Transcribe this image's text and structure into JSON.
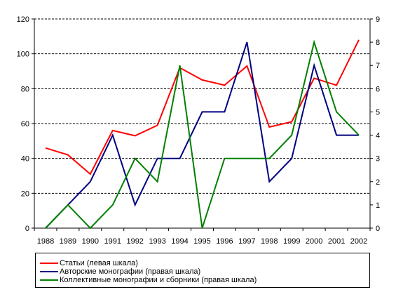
{
  "chart_data": {
    "type": "line",
    "x": [
      "1988",
      "1989",
      "1990",
      "1991",
      "1992",
      "1993",
      "1994",
      "1995",
      "1996",
      "1997",
      "1998",
      "1999",
      "2000",
      "2001",
      "2002"
    ],
    "left_axis": {
      "ylim": [
        0,
        120
      ],
      "ticks": [
        "0",
        "20",
        "40",
        "60",
        "80",
        "100",
        "120"
      ]
    },
    "right_axis": {
      "ylim": [
        0,
        9
      ],
      "ticks": [
        "0",
        "1",
        "2",
        "3",
        "4",
        "5",
        "6",
        "7",
        "8",
        "9"
      ]
    },
    "grid": "horizontal dashed",
    "legend_position": "bottom",
    "series": [
      {
        "name": "Статьи (левая шкала)",
        "axis": "left",
        "color": "#ff0000",
        "values": [
          46,
          42,
          31,
          56,
          53,
          59,
          92,
          85,
          82,
          93,
          58,
          61,
          86,
          82,
          108
        ]
      },
      {
        "name": "Авторские монографии (правая шкала)",
        "axis": "right",
        "color": "#000080",
        "values": [
          0,
          1,
          2,
          4,
          1,
          3,
          3,
          5,
          5,
          8,
          2,
          3,
          7,
          4,
          4
        ]
      },
      {
        "name": "Коллективные монографии и сборники (правая шкала)",
        "axis": "right",
        "color": "#008000",
        "values": [
          0,
          1,
          0,
          1,
          3,
          2,
          7,
          0,
          3,
          3,
          3,
          4,
          8,
          5,
          4
        ]
      }
    ]
  }
}
